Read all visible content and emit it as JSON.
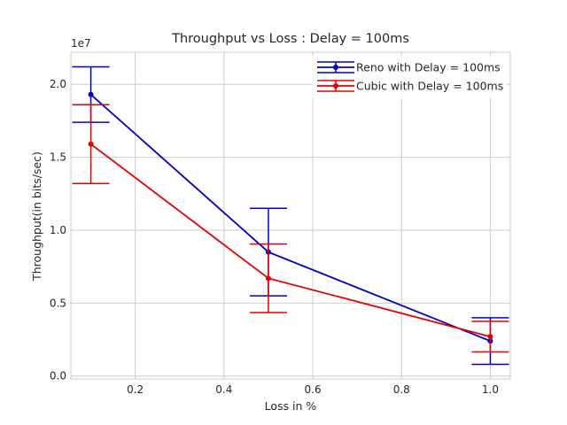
{
  "chart_data": {
    "type": "line",
    "title": "Throughput vs Loss : Delay = 100ms",
    "xlabel": "Loss in %",
    "ylabel": "Throughput(in bits/sec)",
    "y_offset_label": "1e7",
    "x": [
      0.1,
      0.5,
      1.0
    ],
    "xlim": [
      0.055,
      1.045
    ],
    "ylim": [
      -0.02,
      2.22
    ],
    "x_ticks": [
      0.2,
      0.4,
      0.6,
      0.8,
      1.0
    ],
    "x_tick_labels": [
      "0.2",
      "0.4",
      "0.6",
      "0.8",
      "1.0"
    ],
    "y_ticks": [
      0.0,
      0.5,
      1.0,
      1.5,
      2.0
    ],
    "y_tick_labels": [
      "0.0",
      "0.5",
      "1.0",
      "1.5",
      "2.0"
    ],
    "grid": true,
    "legend_position": "upper right",
    "series": [
      {
        "name": "Reno with Delay = 100ms",
        "color": "#0000cc",
        "values": [
          1.93,
          0.85,
          0.24
        ],
        "errors": [
          0.19,
          0.3,
          0.16
        ]
      },
      {
        "name": "Cubic with Delay = 100ms",
        "color": "#e60000",
        "values": [
          1.59,
          0.67,
          0.27
        ],
        "errors": [
          0.27,
          0.235,
          0.105
        ]
      }
    ]
  }
}
